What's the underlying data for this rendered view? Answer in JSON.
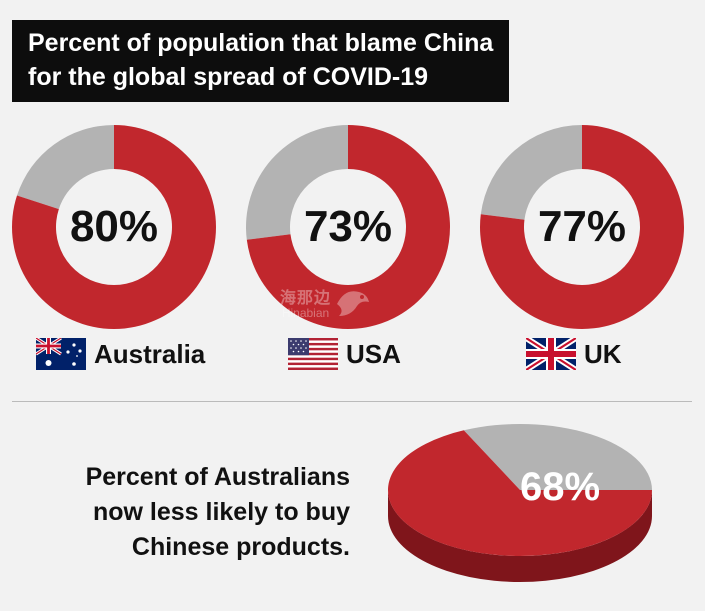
{
  "title_lines": [
    "Percent of population that blame China",
    "for the global spread of COVID-19"
  ],
  "colors": {
    "red": "#c1272d",
    "grey": "#b3b3b3",
    "background": "#f2f2f2",
    "title_bg": "#0d0d0d"
  },
  "chart_data": [
    {
      "type": "pie",
      "style": "donut",
      "charts": [
        {
          "country": "Australia",
          "label": "80%",
          "value": 80,
          "flag_icon": "australia-flag-icon"
        },
        {
          "country": "USA",
          "label": "73%",
          "value": 73,
          "flag_icon": "usa-flag-icon"
        },
        {
          "country": "UK",
          "label": "77%",
          "value": 77,
          "flag_icon": "uk-flag-icon"
        }
      ]
    },
    {
      "type": "pie",
      "style": "3d",
      "text_lines": [
        "Percent of Australians",
        "now less likely to buy",
        "Chinese products."
      ],
      "label": "68%",
      "value": 68
    }
  ],
  "watermark": {
    "cn": "海那边",
    "en": "Hinabian"
  }
}
